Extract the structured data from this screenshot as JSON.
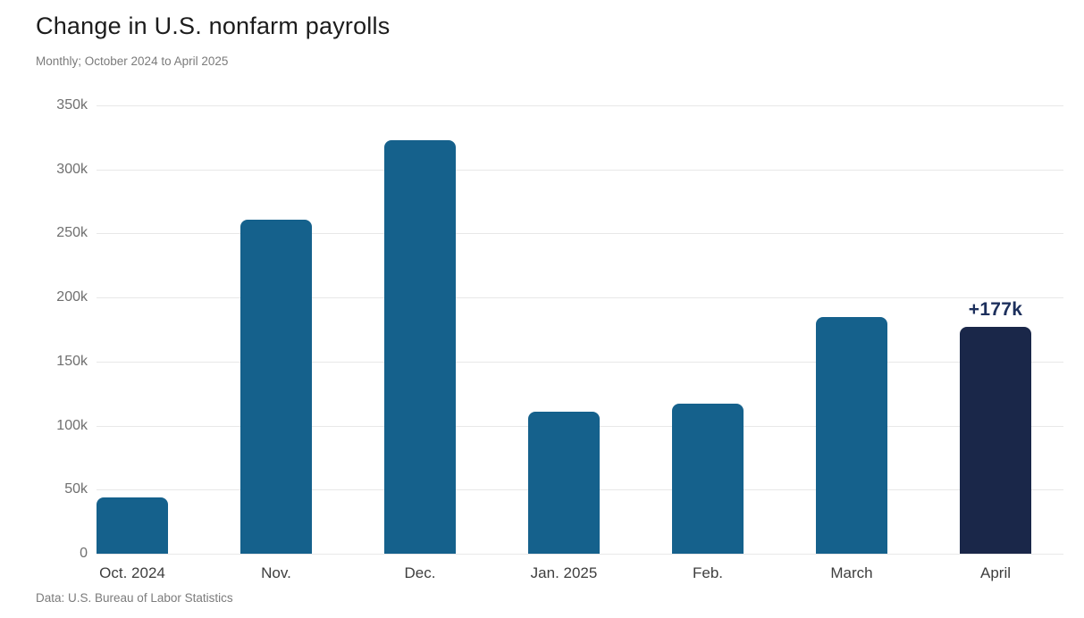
{
  "header": {
    "title": "Change in U.S. nonfarm payrolls",
    "subtitle": "Monthly; October 2024 to April 2025"
  },
  "footer": {
    "source": "Data: U.S. Bureau of Labor Statistics"
  },
  "chart_data": {
    "type": "bar",
    "title": "Change in U.S. nonfarm payrolls",
    "subtitle": "Monthly; October 2024 to April 2025",
    "categories": [
      "Oct. 2024",
      "Nov.",
      "Dec.",
      "Jan. 2025",
      "Feb.",
      "March",
      "April"
    ],
    "values": [
      44000,
      261000,
      323000,
      111000,
      117000,
      185000,
      177000
    ],
    "values_thousands": [
      44,
      261,
      323,
      111,
      117,
      185,
      177
    ],
    "highlight_index": 6,
    "annotation": {
      "text": "+177k",
      "category": "April"
    },
    "xlabel": "",
    "ylabel": "",
    "ylim": [
      0,
      350000
    ],
    "y_ticks": [
      "350k",
      "300k",
      "250k",
      "200k",
      "150k",
      "100k",
      "50k",
      "0"
    ],
    "y_tick_values": [
      350000,
      300000,
      250000,
      200000,
      150000,
      100000,
      50000,
      0
    ],
    "grid": "horizontal",
    "legend": "none",
    "source": "Data: U.S. Bureau of Labor Statistics",
    "colors": {
      "background": "#ffffff",
      "bar_default": "#15618c",
      "bar_highlight": "#1a2749",
      "annotation_text": "#1c2f5c",
      "gridline": "#e8e8e8",
      "title_text": "#1c1c1c",
      "subtitle_text": "#7b7b7b",
      "x_tick_text": "#3e3e3e",
      "y_tick_text": "#6f6f6f",
      "source_text": "#7b7b7b"
    }
  }
}
